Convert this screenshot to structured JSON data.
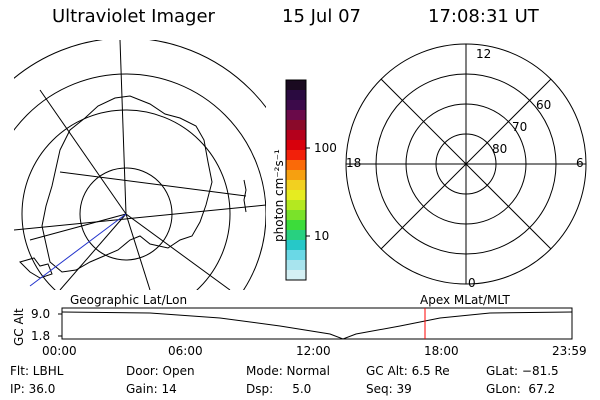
{
  "header": {
    "title": "Ultraviolet Imager",
    "date": "15 Jul 07",
    "time": "17:08:31 UT"
  },
  "colorbar": {
    "label": "photon cm⁻²s⁻¹",
    "ticks": [
      "100",
      "10"
    ],
    "colors": [
      "#1a0a20",
      "#2a0a40",
      "#3c0a4a",
      "#6a0a4a",
      "#8a0a2a",
      "#b4001c",
      "#d8000c",
      "#f2200a",
      "#fa6a08",
      "#f6a010",
      "#f2d020",
      "#e6ec20",
      "#b4e820",
      "#7ae22a",
      "#3cdc3a",
      "#28d080",
      "#26c8c8",
      "#6ad8e6",
      "#a8e4ee",
      "#d4f0f4"
    ]
  },
  "mlt_dial": {
    "hour_labels": [
      "12",
      "18",
      "6",
      "0"
    ],
    "lat_labels": [
      "60",
      "70",
      "80"
    ]
  },
  "timeline": {
    "left_label": "Geographic Lat/Lon",
    "right_label": "Apex MLat/MLT",
    "y_axis_label": "GC Alt",
    "y_ticks": [
      "9.0",
      "1.8"
    ],
    "x_ticks": [
      "00:00",
      "06:00",
      "12:00",
      "18:00",
      "23:59"
    ],
    "marker_color": "#ff0000"
  },
  "status": {
    "flt": "Flt: LBHL",
    "ip": "IP: 36.0",
    "door": "Door: Open",
    "gain": "Gain: 14",
    "mode": "Mode: Normal",
    "dsp": "Dsp:     5.0",
    "gc_alt": "GC Alt: 6.5 Re",
    "seq": "Seq: 39",
    "glat": "GLat: −81.5",
    "glon": "GLon:  67.2"
  }
}
